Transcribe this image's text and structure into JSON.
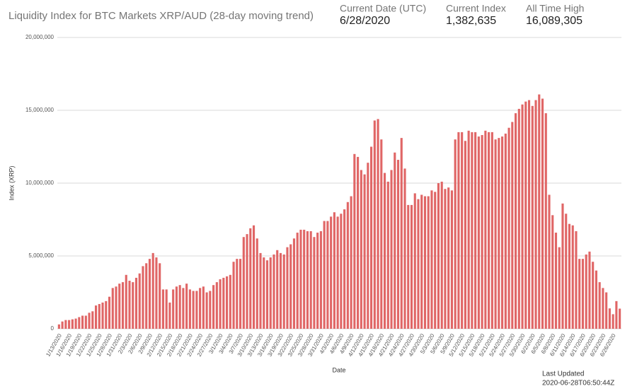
{
  "chart_data": {
    "type": "bar",
    "title": "Liquidity Index for BTC Markets XRP/AUD (28-day moving trend)",
    "stats": [
      {
        "label": "Current Date (UTC)",
        "value": "6/28/2020"
      },
      {
        "label": "Current Index",
        "value": "1,382,635"
      },
      {
        "label": "All Time High",
        "value": "16,089,305"
      }
    ],
    "y_label": "Index (XRP)",
    "x_label": "Date",
    "last_updated_label": "Last Updated",
    "last_updated": "2020-06-28T06:50:44Z",
    "color": "#e06666",
    "grid": true,
    "ylim": [
      0,
      20000000
    ],
    "yticks": [
      0,
      {
        "value": 5000000,
        "label": "5,000,000"
      },
      {
        "value": 10000000,
        "label": "10,000,000"
      },
      {
        "value": 15000000,
        "label": "15,000,000"
      },
      {
        "value": 20000000,
        "label": "20,000,000"
      }
    ],
    "categories": [
      "1/13/2020",
      null,
      null,
      "1/16/2020",
      null,
      null,
      "1/19/2020",
      null,
      null,
      "1/22/2020",
      null,
      null,
      "1/25/2020",
      null,
      null,
      "1/28/2020",
      null,
      null,
      "1/31/2020",
      null,
      null,
      "2/3/2020",
      null,
      null,
      "2/6/2020",
      null,
      null,
      "2/9/2020",
      null,
      null,
      "2/12/2020",
      null,
      null,
      "2/15/2020",
      null,
      null,
      "2/18/2020",
      null,
      null,
      "2/21/2020",
      null,
      null,
      "2/24/2020",
      null,
      null,
      "2/27/2020",
      null,
      null,
      "3/1/2020",
      null,
      null,
      "3/4/2020",
      null,
      null,
      "3/7/2020",
      null,
      null,
      "3/10/2020",
      null,
      null,
      "3/13/2020",
      null,
      null,
      "3/16/2020",
      null,
      null,
      "3/19/2020",
      null,
      null,
      "3/22/2020",
      null,
      null,
      "3/25/2020",
      null,
      null,
      "3/28/2020",
      null,
      null,
      "3/31/2020",
      null,
      null,
      "4/3/2020",
      null,
      null,
      "4/6/2020",
      null,
      null,
      "4/9/2020",
      null,
      null,
      "4/12/2020",
      null,
      null,
      "4/15/2020",
      null,
      null,
      "4/18/2020",
      null,
      null,
      "4/21/2020",
      null,
      null,
      "4/24/2020",
      null,
      null,
      "4/27/2020",
      null,
      null,
      "4/30/2020",
      null,
      null,
      "5/3/2020",
      null,
      null,
      "5/6/2020",
      null,
      null,
      "5/9/2020",
      null,
      null,
      "5/12/2020",
      null,
      null,
      "5/15/2020",
      null,
      null,
      "5/18/2020",
      null,
      null,
      "5/21/2020",
      null,
      null,
      "5/24/2020",
      null,
      null,
      "5/27/2020",
      null,
      null,
      "5/30/2020",
      null,
      null,
      "6/2/2020",
      null,
      null,
      "6/5/2020",
      null,
      null,
      "6/8/2020",
      null,
      null,
      "6/11/2020",
      null,
      null,
      "6/14/2020",
      null,
      null,
      "6/17/2020",
      null,
      null,
      "6/20/2020",
      null,
      null,
      "6/23/2020",
      null,
      null,
      "6/26/2020",
      null,
      null
    ],
    "values": [
      300000,
      500000,
      600000,
      600000,
      650000,
      700000,
      800000,
      900000,
      900000,
      1100000,
      1200000,
      1600000,
      1700000,
      1800000,
      1900000,
      2200000,
      2800000,
      2900000,
      3100000,
      3200000,
      3700000,
      3300000,
      3200000,
      3500000,
      3800000,
      4300000,
      4500000,
      4800000,
      5200000,
      4900000,
      4500000,
      2700000,
      2700000,
      1800000,
      2700000,
      2900000,
      3000000,
      2800000,
      3100000,
      2700000,
      2600000,
      2600000,
      2800000,
      2900000,
      2500000,
      2600000,
      3000000,
      3200000,
      3400000,
      3500000,
      3600000,
      3700000,
      4600000,
      4800000,
      4800000,
      6300000,
      6500000,
      6900000,
      7100000,
      6200000,
      5200000,
      4900000,
      4700000,
      4900000,
      5100000,
      5400000,
      5200000,
      5100000,
      5600000,
      5800000,
      6200000,
      6600000,
      6800000,
      6800000,
      6700000,
      6700000,
      6300000,
      6600000,
      6700000,
      7400000,
      7400000,
      7700000,
      8000000,
      7700000,
      7900000,
      8200000,
      8700000,
      9100000,
      12000000,
      11800000,
      10900000,
      10600000,
      11400000,
      12500000,
      14300000,
      14400000,
      13000000,
      10700000,
      10100000,
      10900000,
      12100000,
      11600000,
      13100000,
      11000000,
      8500000,
      8500000,
      9300000,
      8900000,
      9200000,
      9100000,
      9100000,
      9500000,
      9400000,
      10000000,
      10100000,
      9600000,
      9700000,
      9500000,
      13000000,
      13500000,
      13500000,
      12900000,
      13600000,
      13500000,
      13500000,
      13200000,
      13300000,
      13600000,
      13500000,
      13500000,
      13000000,
      13100000,
      13200000,
      13400000,
      13800000,
      14200000,
      14800000,
      15100000,
      15400000,
      15600000,
      15700000,
      15300000,
      15700000,
      16089305,
      15800000,
      14800000,
      9200000,
      7800000,
      6600000,
      5600000,
      8600000,
      7900000,
      7200000,
      7100000,
      6700000,
      4800000,
      4800000,
      5100000,
      5300000,
      4600000,
      4000000,
      3200000,
      2800000,
      2500000,
      1400000,
      1000000,
      1900000,
      1382635
    ]
  }
}
